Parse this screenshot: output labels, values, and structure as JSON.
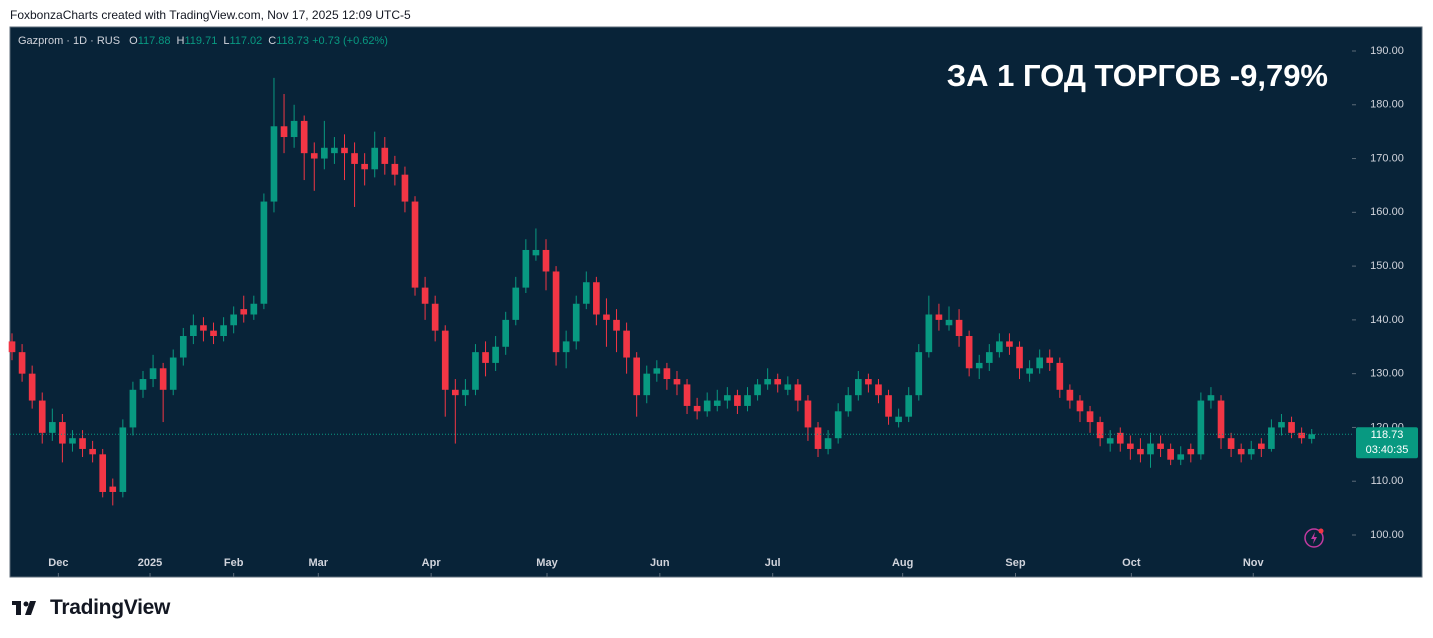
{
  "header": "FoxbonzaCharts created with TradingView.com, Nov 17, 2025 12:09 UTC-5",
  "footer_logo": "TradingView",
  "chart_data": {
    "type": "candlestick",
    "title": "Gazprom · 1D · RUS",
    "annotation": "ЗА 1 ГОД ТОРГОВ -9,79%",
    "ohlc_labels": [
      "O",
      "H",
      "L",
      "C"
    ],
    "change": {
      "value": 0.73,
      "label": "+0.73"
    },
    "change_pct": {
      "value": 0.62,
      "label": "(+0.62%)"
    },
    "countdown": "03:40:35",
    "up_color": "#089981",
    "down_color": "#f23645",
    "last_price_line": true,
    "open": [
      136,
      134,
      130,
      125,
      119,
      121,
      117,
      118,
      116,
      115,
      109,
      108,
      120,
      127,
      129,
      131,
      127,
      133,
      137,
      139,
      138,
      137,
      139,
      142,
      141,
      143,
      162,
      176,
      174,
      177,
      171,
      170,
      171,
      172,
      171,
      169,
      168,
      172,
      169,
      167,
      162,
      146,
      143,
      138,
      127,
      126,
      127,
      134,
      132,
      135,
      140,
      146,
      152,
      153,
      149,
      134,
      136,
      143,
      147,
      141,
      140,
      138,
      133,
      126,
      130,
      131,
      129,
      128,
      124,
      123,
      124,
      125,
      126,
      124,
      126,
      128,
      129,
      127,
      128,
      125,
      120,
      116,
      118,
      123,
      126,
      129,
      128,
      126,
      121,
      122,
      126,
      134,
      141,
      139,
      140,
      137,
      131,
      132,
      134,
      136,
      135,
      130,
      131,
      133,
      132,
      127,
      125,
      123,
      121,
      117,
      119,
      117,
      116,
      115,
      117,
      116,
      114,
      116,
      115,
      125,
      125,
      118,
      116,
      115,
      117,
      116,
      120,
      121,
      119,
      117.88
    ],
    "high": [
      137.5,
      135.5,
      131.5,
      126.5,
      123.5,
      122.5,
      119.5,
      119.5,
      117.5,
      116,
      110.5,
      121.5,
      128.5,
      130.5,
      133.5,
      132,
      134.5,
      138.5,
      141,
      140.5,
      139.5,
      140.5,
      142.5,
      144.5,
      144.5,
      163.5,
      185,
      182,
      180,
      178,
      173,
      177,
      174,
      174.5,
      173,
      171,
      175,
      174,
      170.5,
      168.5,
      163,
      148,
      144.5,
      139,
      129,
      129,
      135.5,
      136,
      137,
      141.5,
      148,
      155,
      157,
      155,
      150,
      138,
      144.5,
      149,
      148,
      144,
      142,
      139.5,
      134,
      131.5,
      132.5,
      132,
      130.5,
      129,
      125.5,
      126.5,
      127,
      127.5,
      127,
      127.5,
      129,
      131,
      130,
      129.5,
      129,
      126,
      121,
      119.5,
      124.5,
      127.5,
      130.5,
      130,
      129,
      127,
      123.5,
      127.5,
      135.5,
      144.5,
      143,
      142.5,
      142,
      138,
      133.5,
      135.5,
      137.5,
      137.5,
      136,
      132.5,
      134.5,
      134.5,
      133,
      128,
      126,
      124,
      122,
      119.5,
      120,
      118.5,
      118,
      119,
      118.5,
      117,
      116.5,
      117,
      126.5,
      127.5,
      126,
      119,
      117,
      117.5,
      118,
      121.5,
      122.5,
      122,
      120,
      119.71
    ],
    "low": [
      132.5,
      128.5,
      123.5,
      117,
      117.5,
      113.5,
      115.5,
      114.5,
      113.5,
      107,
      105.5,
      107,
      118.5,
      125.5,
      127.5,
      121,
      126,
      131.5,
      135.5,
      136,
      135.5,
      136,
      137.5,
      139.5,
      140,
      142,
      160,
      171,
      172,
      166,
      164,
      168,
      169,
      166,
      161,
      165,
      166.5,
      167,
      165,
      160,
      144.5,
      140,
      136,
      122,
      117,
      124,
      126,
      129.5,
      130.5,
      133.5,
      139,
      145,
      151,
      145.5,
      131.5,
      131,
      134.5,
      142,
      139,
      135,
      134,
      130,
      122,
      124.5,
      128.5,
      127,
      126,
      122.5,
      121.5,
      122,
      123,
      123.5,
      122.5,
      123,
      125,
      127,
      126.5,
      126,
      123,
      117.5,
      114.5,
      115,
      117,
      122,
      125,
      126.5,
      124.5,
      120.5,
      120,
      121,
      125,
      133,
      138,
      138,
      135,
      129.5,
      129,
      130.5,
      133,
      133.5,
      129,
      128.5,
      130,
      130.5,
      125.5,
      123.5,
      121,
      119,
      116.5,
      115.5,
      115.5,
      114,
      113.5,
      112.5,
      114.5,
      113,
      113,
      113.5,
      114,
      123.5,
      116,
      114.5,
      113.5,
      114,
      114.5,
      115.5,
      118.5,
      118,
      117,
      117.02
    ],
    "close": [
      134,
      130,
      125,
      119,
      121,
      117,
      118,
      116,
      115,
      108,
      108,
      120,
      127,
      129,
      131,
      127,
      133,
      137,
      139,
      138,
      137,
      139,
      141,
      141,
      143,
      162,
      176,
      174,
      177,
      171,
      170,
      172,
      172,
      171,
      169,
      168,
      172,
      169,
      167,
      162,
      146,
      143,
      138,
      127,
      126,
      127,
      134,
      132,
      135,
      140,
      146,
      153,
      153,
      149,
      134,
      136,
      143,
      147,
      141,
      140,
      138,
      133,
      126,
      130,
      131,
      129,
      128,
      124,
      123,
      125,
      125,
      126,
      124,
      126,
      128,
      129,
      128,
      128,
      125,
      120,
      116,
      118,
      123,
      126,
      129,
      128,
      126,
      122,
      122,
      126,
      134,
      141,
      140,
      140,
      137,
      131,
      132,
      134,
      136,
      135,
      131,
      131,
      133,
      132,
      127,
      125,
      123,
      121,
      118,
      118,
      117,
      116,
      115,
      117,
      116,
      114,
      115,
      115,
      125,
      126,
      118,
      116,
      115,
      116,
      116,
      120,
      121,
      119,
      118,
      118.73
    ],
    "ylim": [
      92.19,
      194.46
    ],
    "yticks": [
      {
        "value": 100,
        "label": "100.00"
      },
      {
        "value": 110,
        "label": "110.00"
      },
      {
        "value": 120,
        "label": "120.00"
      },
      {
        "value": 130,
        "label": "130.00"
      },
      {
        "value": 140,
        "label": "140.00"
      },
      {
        "value": 150,
        "label": "150.00"
      },
      {
        "value": 160,
        "label": "160.00"
      },
      {
        "value": 170,
        "label": "170.00"
      },
      {
        "value": 180,
        "label": "180.00"
      },
      {
        "value": 190,
        "label": "190.00"
      }
    ],
    "xlim": [
      -0.2,
      133
    ],
    "xticks": [
      {
        "value": 4.6,
        "label": "Dec"
      },
      {
        "value": 13.7,
        "label": "2025"
      },
      {
        "value": 22,
        "label": "Feb"
      },
      {
        "value": 30.4,
        "label": "Mar"
      },
      {
        "value": 41.6,
        "label": "Apr"
      },
      {
        "value": 53.1,
        "label": "May"
      },
      {
        "value": 64.3,
        "label": "Jun"
      },
      {
        "value": 75.5,
        "label": "Jul"
      },
      {
        "value": 88.4,
        "label": "Aug"
      },
      {
        "value": 99.6,
        "label": "Sep"
      },
      {
        "value": 111.1,
        "label": "Oct"
      },
      {
        "value": 123.2,
        "label": "Nov"
      }
    ]
  }
}
